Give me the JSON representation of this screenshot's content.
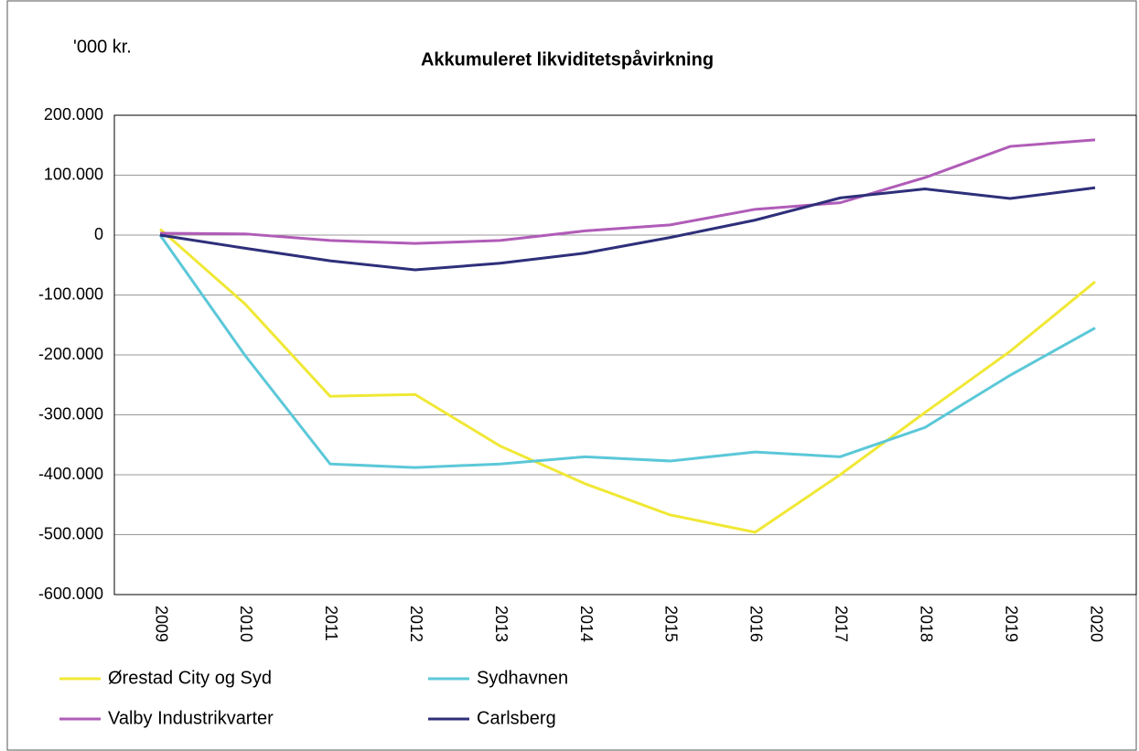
{
  "chart_data": {
    "type": "line",
    "title": "Akkumuleret likviditetspåvirkning",
    "y_label": "'000 kr.",
    "categories": [
      "2009",
      "2010",
      "2011",
      "2012",
      "2013",
      "2014",
      "2015",
      "2016",
      "2017",
      "2018",
      "2019",
      "2020"
    ],
    "series": [
      {
        "name": "Ørestad City og Syd",
        "color": "#f0e836",
        "values": [
          10000,
          -115000,
          -269000,
          -266000,
          -352000,
          -415000,
          -467000,
          -496000,
          -400000,
          -296000,
          -194000,
          -78000
        ]
      },
      {
        "name": "Sydhavnen",
        "color": "#5bc8d8",
        "values": [
          0,
          -201000,
          -382000,
          -388000,
          -382000,
          -370000,
          -377000,
          -362000,
          -370000,
          -321000,
          -234000,
          -155000
        ]
      },
      {
        "name": "Valby Industrikvarter",
        "color": "#b05cb8",
        "values": [
          3000,
          2000,
          -9000,
          -14000,
          -9000,
          7000,
          17000,
          43000,
          54000,
          96000,
          148000,
          159000
        ]
      },
      {
        "name": "Carlsberg",
        "color": "#2e2f7a",
        "values": [
          0,
          -22000,
          -43000,
          -58000,
          -47000,
          -30000,
          -4000,
          25000,
          62000,
          77000,
          61000,
          79000
        ]
      }
    ],
    "ylim": [
      -600000,
      200000
    ],
    "yticks": [
      {
        "value": -600000,
        "label": "-600.000"
      },
      {
        "value": -500000,
        "label": "-500.000"
      },
      {
        "value": -400000,
        "label": "-400.000"
      },
      {
        "value": -300000,
        "label": "-300.000"
      },
      {
        "value": -200000,
        "label": "-200.000"
      },
      {
        "value": -100000,
        "label": "-100.000"
      },
      0,
      {
        "value": 100000,
        "label": "100.000"
      },
      {
        "value": 200000,
        "label": "200.000"
      }
    ],
    "grid": true
  }
}
